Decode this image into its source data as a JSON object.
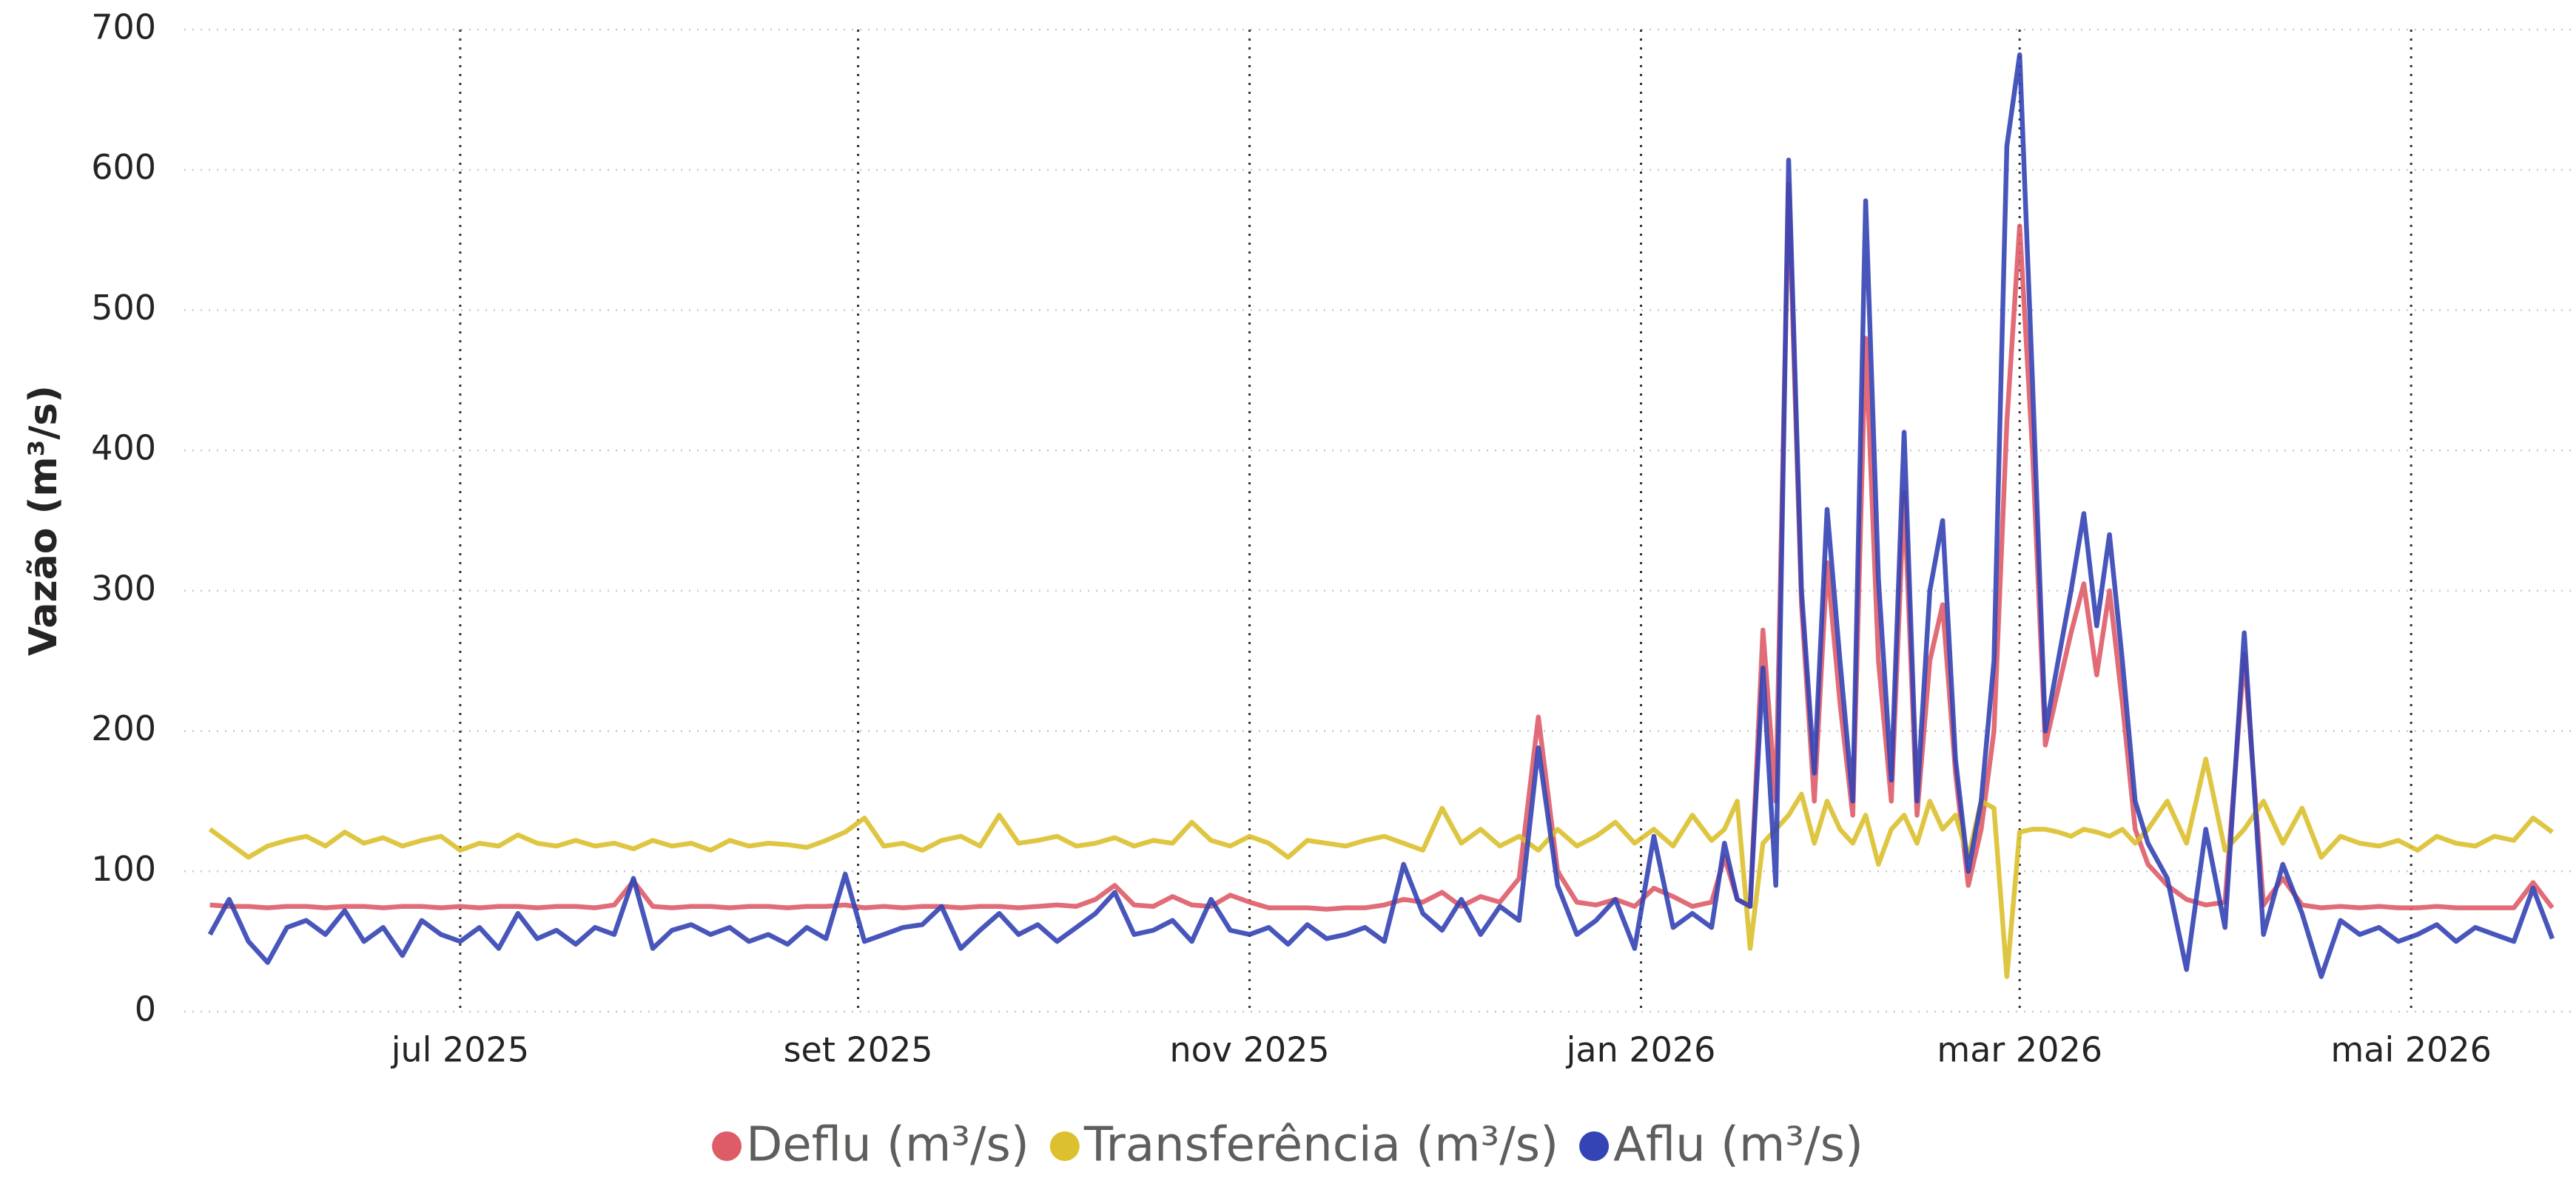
{
  "chart_data": {
    "type": "line",
    "y_label": "Vazão (m³/s)",
    "x": [
      -39,
      -36,
      -33,
      -30,
      -27,
      -24,
      -21,
      -18,
      -15,
      -12,
      -9,
      -6,
      -3,
      0,
      3,
      6,
      9,
      12,
      15,
      18,
      21,
      24,
      27,
      30,
      33,
      36,
      39,
      42,
      45,
      48,
      51,
      54,
      57,
      60,
      63,
      66,
      69,
      72,
      75,
      78,
      81,
      84,
      87,
      90,
      93,
      96,
      99,
      102,
      105,
      108,
      111,
      114,
      117,
      120,
      123,
      126,
      129,
      132,
      135,
      138,
      141,
      144,
      147,
      150,
      153,
      156,
      159,
      162,
      165,
      168,
      171,
      174,
      177,
      180,
      183,
      186,
      189,
      192,
      195,
      197,
      199,
      201,
      203,
      205,
      207,
      209,
      211,
      213,
      215,
      217,
      219,
      221,
      223,
      225,
      227,
      229,
      231,
      233,
      235,
      237,
      239,
      241,
      243,
      245,
      247,
      249,
      251,
      253,
      255,
      257,
      259,
      261,
      263,
      266,
      269,
      272,
      275,
      278,
      281,
      284,
      287,
      290,
      293,
      296,
      299,
      302,
      305,
      308,
      311,
      314,
      317,
      320,
      323,
      326
    ],
    "xlim": [
      -43,
      329
    ],
    "xticks": [
      {
        "value": 0,
        "label": "jul 2025"
      },
      {
        "value": 62,
        "label": "set 2025"
      },
      {
        "value": 123,
        "label": "nov 2025"
      },
      {
        "value": 184,
        "label": "jan 2026"
      },
      {
        "value": 243,
        "label": "mar 2026"
      },
      {
        "value": 304,
        "label": "mai 2026"
      }
    ],
    "ylim": [
      0,
      700
    ],
    "yticks": [
      0,
      100,
      200,
      300,
      400,
      500,
      600,
      700
    ],
    "grid": true,
    "series": [
      {
        "name": "Deflu (m³/s)",
        "color": "#de5c68",
        "values": [
          76,
          75,
          75,
          74,
          75,
          75,
          74,
          75,
          75,
          74,
          75,
          75,
          74,
          75,
          74,
          75,
          75,
          74,
          75,
          75,
          74,
          76,
          93,
          75,
          74,
          75,
          75,
          74,
          75,
          75,
          74,
          75,
          75,
          76,
          74,
          75,
          74,
          75,
          75,
          74,
          75,
          75,
          74,
          75,
          76,
          75,
          80,
          90,
          76,
          75,
          82,
          76,
          75,
          83,
          78,
          74,
          74,
          74,
          73,
          74,
          74,
          76,
          80,
          78,
          85,
          75,
          82,
          78,
          95,
          210,
          100,
          78,
          76,
          80,
          75,
          88,
          82,
          75,
          78,
          110,
          80,
          75,
          272,
          150,
          590,
          290,
          150,
          320,
          220,
          140,
          480,
          250,
          150,
          370,
          140,
          250,
          290,
          170,
          90,
          130,
          200,
          420,
          560,
          400,
          190,
          230,
          270,
          305,
          240,
          300,
          220,
          130,
          105,
          90,
          80,
          76,
          78,
          255,
          76,
          95,
          76,
          74,
          75,
          74,
          75,
          74,
          74,
          75,
          74,
          74,
          74,
          74,
          92,
          74
        ]
      },
      {
        "name": "Transferência (m³/s)",
        "color": "#dcc02e",
        "values": [
          130,
          120,
          110,
          118,
          122,
          125,
          118,
          128,
          120,
          124,
          118,
          122,
          125,
          115,
          120,
          118,
          126,
          120,
          118,
          122,
          118,
          120,
          116,
          122,
          118,
          120,
          115,
          122,
          118,
          120,
          119,
          117,
          122,
          128,
          138,
          118,
          120,
          115,
          122,
          125,
          118,
          140,
          120,
          122,
          125,
          118,
          120,
          124,
          118,
          122,
          120,
          135,
          122,
          118,
          125,
          120,
          110,
          122,
          120,
          118,
          122,
          125,
          120,
          115,
          145,
          120,
          130,
          118,
          125,
          115,
          130,
          118,
          125,
          135,
          120,
          130,
          118,
          140,
          122,
          130,
          150,
          45,
          120,
          130,
          140,
          155,
          120,
          150,
          130,
          120,
          140,
          105,
          130,
          140,
          120,
          150,
          130,
          140,
          110,
          150,
          145,
          25,
          128,
          130,
          130,
          128,
          125,
          130,
          128,
          125,
          130,
          120,
          130,
          150,
          120,
          180,
          115,
          130,
          150,
          120,
          145,
          110,
          125,
          120,
          118,
          122,
          115,
          125,
          120,
          118,
          125,
          122,
          138,
          128
        ]
      },
      {
        "name": "Aflu (m³/s)",
        "color": "#3444b4",
        "values": [
          55,
          80,
          50,
          35,
          60,
          65,
          55,
          72,
          50,
          60,
          40,
          65,
          55,
          50,
          60,
          45,
          70,
          52,
          58,
          48,
          60,
          55,
          95,
          45,
          58,
          62,
          55,
          60,
          50,
          55,
          48,
          60,
          52,
          98,
          50,
          55,
          60,
          62,
          75,
          45,
          58,
          70,
          55,
          62,
          50,
          60,
          70,
          85,
          55,
          58,
          65,
          50,
          80,
          58,
          55,
          60,
          48,
          62,
          52,
          55,
          60,
          50,
          105,
          70,
          58,
          80,
          55,
          75,
          65,
          188,
          90,
          55,
          65,
          80,
          45,
          125,
          60,
          70,
          60,
          120,
          80,
          75,
          245,
          90,
          607,
          300,
          170,
          358,
          250,
          150,
          578,
          308,
          165,
          413,
          150,
          300,
          350,
          180,
          100,
          150,
          250,
          617,
          682,
          450,
          200,
          250,
          300,
          355,
          275,
          340,
          250,
          150,
          120,
          95,
          30,
          130,
          60,
          270,
          55,
          105,
          70,
          25,
          65,
          55,
          60,
          50,
          55,
          62,
          50,
          60,
          55,
          50,
          88,
          52
        ]
      }
    ]
  }
}
